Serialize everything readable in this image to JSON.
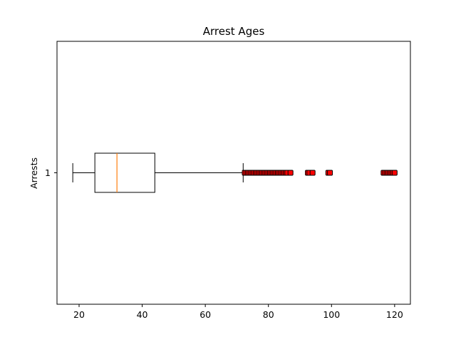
{
  "chart_data": {
    "type": "boxplot",
    "orientation": "horizontal",
    "title": "Arrest Ages",
    "xlabel": "",
    "ylabel": "Arrests",
    "xlim": [
      13,
      125
    ],
    "x_ticks": [
      20,
      40,
      60,
      80,
      100,
      120
    ],
    "y_ticks": [
      "1"
    ],
    "grid": false,
    "colors": {
      "box": "#000000",
      "median": "#ff7f0e",
      "flier_fill": "#ff0000",
      "flier_edge": "#000000"
    },
    "series": [
      {
        "category": "1",
        "whisker_low": 18,
        "q1": 25,
        "median": 32,
        "q3": 44,
        "whisker_high": 72,
        "outliers": [
          72.5,
          73,
          73.5,
          74,
          74.5,
          75,
          75.5,
          76,
          76.5,
          77,
          77.5,
          78,
          78.5,
          79,
          79.5,
          80,
          80.5,
          81,
          81.5,
          82,
          82.5,
          83,
          83.5,
          84,
          84.5,
          85,
          85.5,
          86,
          87,
          92.5,
          93,
          94,
          99,
          99.5,
          116.5,
          117,
          117.5,
          118,
          118.5,
          119,
          119.5,
          120
        ]
      }
    ]
  }
}
